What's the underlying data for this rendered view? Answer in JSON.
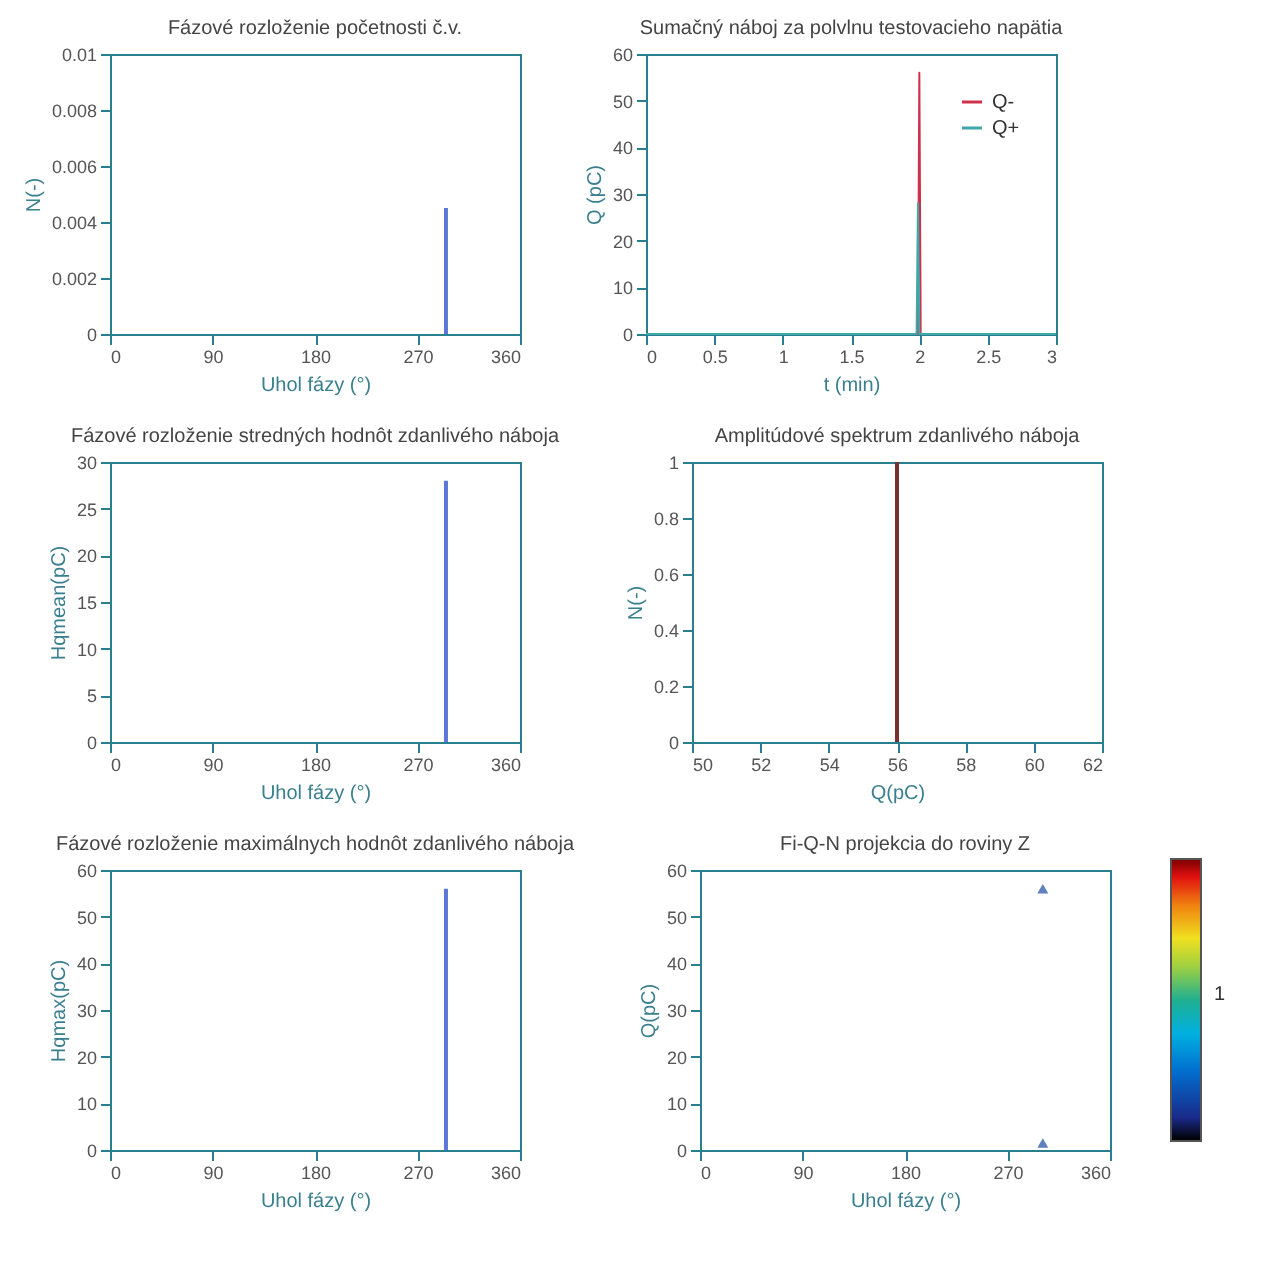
{
  "chart_data": [
    {
      "type": "bar",
      "title": "Fázové rozloženie početnosti č.v.",
      "xlabel": "Uhol fázy (°)",
      "ylabel": "N(-)",
      "x": [
        295
      ],
      "values": [
        0.0045
      ],
      "color": "#5b78d6",
      "xlim": [
        0,
        360
      ],
      "xticks": [
        0,
        90,
        180,
        270,
        360
      ],
      "ylim": [
        0,
        0.01
      ],
      "yticks": [
        0,
        0.002,
        0.004,
        0.006,
        0.008,
        0.01
      ]
    },
    {
      "type": "line",
      "title": "Sumačný náboj za polvlnu testovacieho napätia",
      "xlabel": "t (min)",
      "ylabel": "Q (pC)",
      "legend": "top right",
      "xlim": [
        0,
        3
      ],
      "xticks": [
        0,
        0.5,
        1,
        1.5,
        2,
        2.5,
        3
      ],
      "ylim": [
        0,
        60
      ],
      "yticks": [
        0,
        10,
        20,
        30,
        40,
        50,
        60
      ],
      "series": [
        {
          "name": "Q-",
          "color": "#d0304a",
          "x": [
            0,
            1.99,
            2,
            2.01,
            3
          ],
          "values": [
            0,
            0,
            56,
            0,
            0
          ]
        },
        {
          "name": "Q+",
          "color": "#40a8a8",
          "x": [
            0,
            1.98,
            1.99,
            2.0,
            3
          ],
          "values": [
            0,
            0,
            28,
            0,
            0
          ]
        }
      ]
    },
    {
      "type": "bar",
      "title": "Fázové rozloženie stredných hodnôt zdanlivého náboja",
      "xlabel": "Uhol fázy (°)",
      "ylabel": "Hqmean(pC)",
      "x": [
        295
      ],
      "values": [
        28
      ],
      "color": "#5b78d6",
      "xlim": [
        0,
        360
      ],
      "xticks": [
        0,
        90,
        180,
        270,
        360
      ],
      "ylim": [
        0,
        30
      ],
      "yticks": [
        0,
        5,
        10,
        15,
        20,
        25,
        30
      ]
    },
    {
      "type": "bar",
      "title": "Amplitúdové spektrum zdanlivého náboja",
      "xlabel": "Q(pC)",
      "ylabel": "N(-)",
      "x": [
        56
      ],
      "values": [
        1
      ],
      "color": "#7a3030",
      "xlim": [
        50,
        62
      ],
      "xticks": [
        50,
        52,
        54,
        56,
        58,
        60,
        62
      ],
      "ylim": [
        0,
        1
      ],
      "yticks": [
        0,
        0.2,
        0.4,
        0.6,
        0.8,
        1
      ]
    },
    {
      "type": "bar",
      "title": "Fázové rozloženie maximálnych hodnôt zdanlivého náboja",
      "xlabel": "Uhol fázy (°)",
      "ylabel": "Hqmax(pC)",
      "x": [
        295
      ],
      "values": [
        56
      ],
      "color": "#5b78d6",
      "xlim": [
        0,
        360
      ],
      "xticks": [
        0,
        90,
        180,
        270,
        360
      ],
      "ylim": [
        0,
        60
      ],
      "yticks": [
        0,
        10,
        20,
        30,
        40,
        50,
        60
      ]
    },
    {
      "type": "scatter",
      "title": "Fi-Q-N projekcia do roviny Z",
      "xlabel": "Uhol fázy (°)",
      "ylabel": "Q(pC)",
      "marker": "triangle",
      "x": [
        301,
        301
      ],
      "values": [
        56,
        1.5
      ],
      "color": "#1a4aa0",
      "annotations": [
        "1"
      ],
      "xlim": [
        0,
        360
      ],
      "xticks": [
        0,
        90,
        180,
        270,
        360
      ],
      "ylim": [
        0,
        60
      ],
      "yticks": [
        0,
        10,
        20,
        30,
        40,
        50,
        60
      ]
    }
  ]
}
